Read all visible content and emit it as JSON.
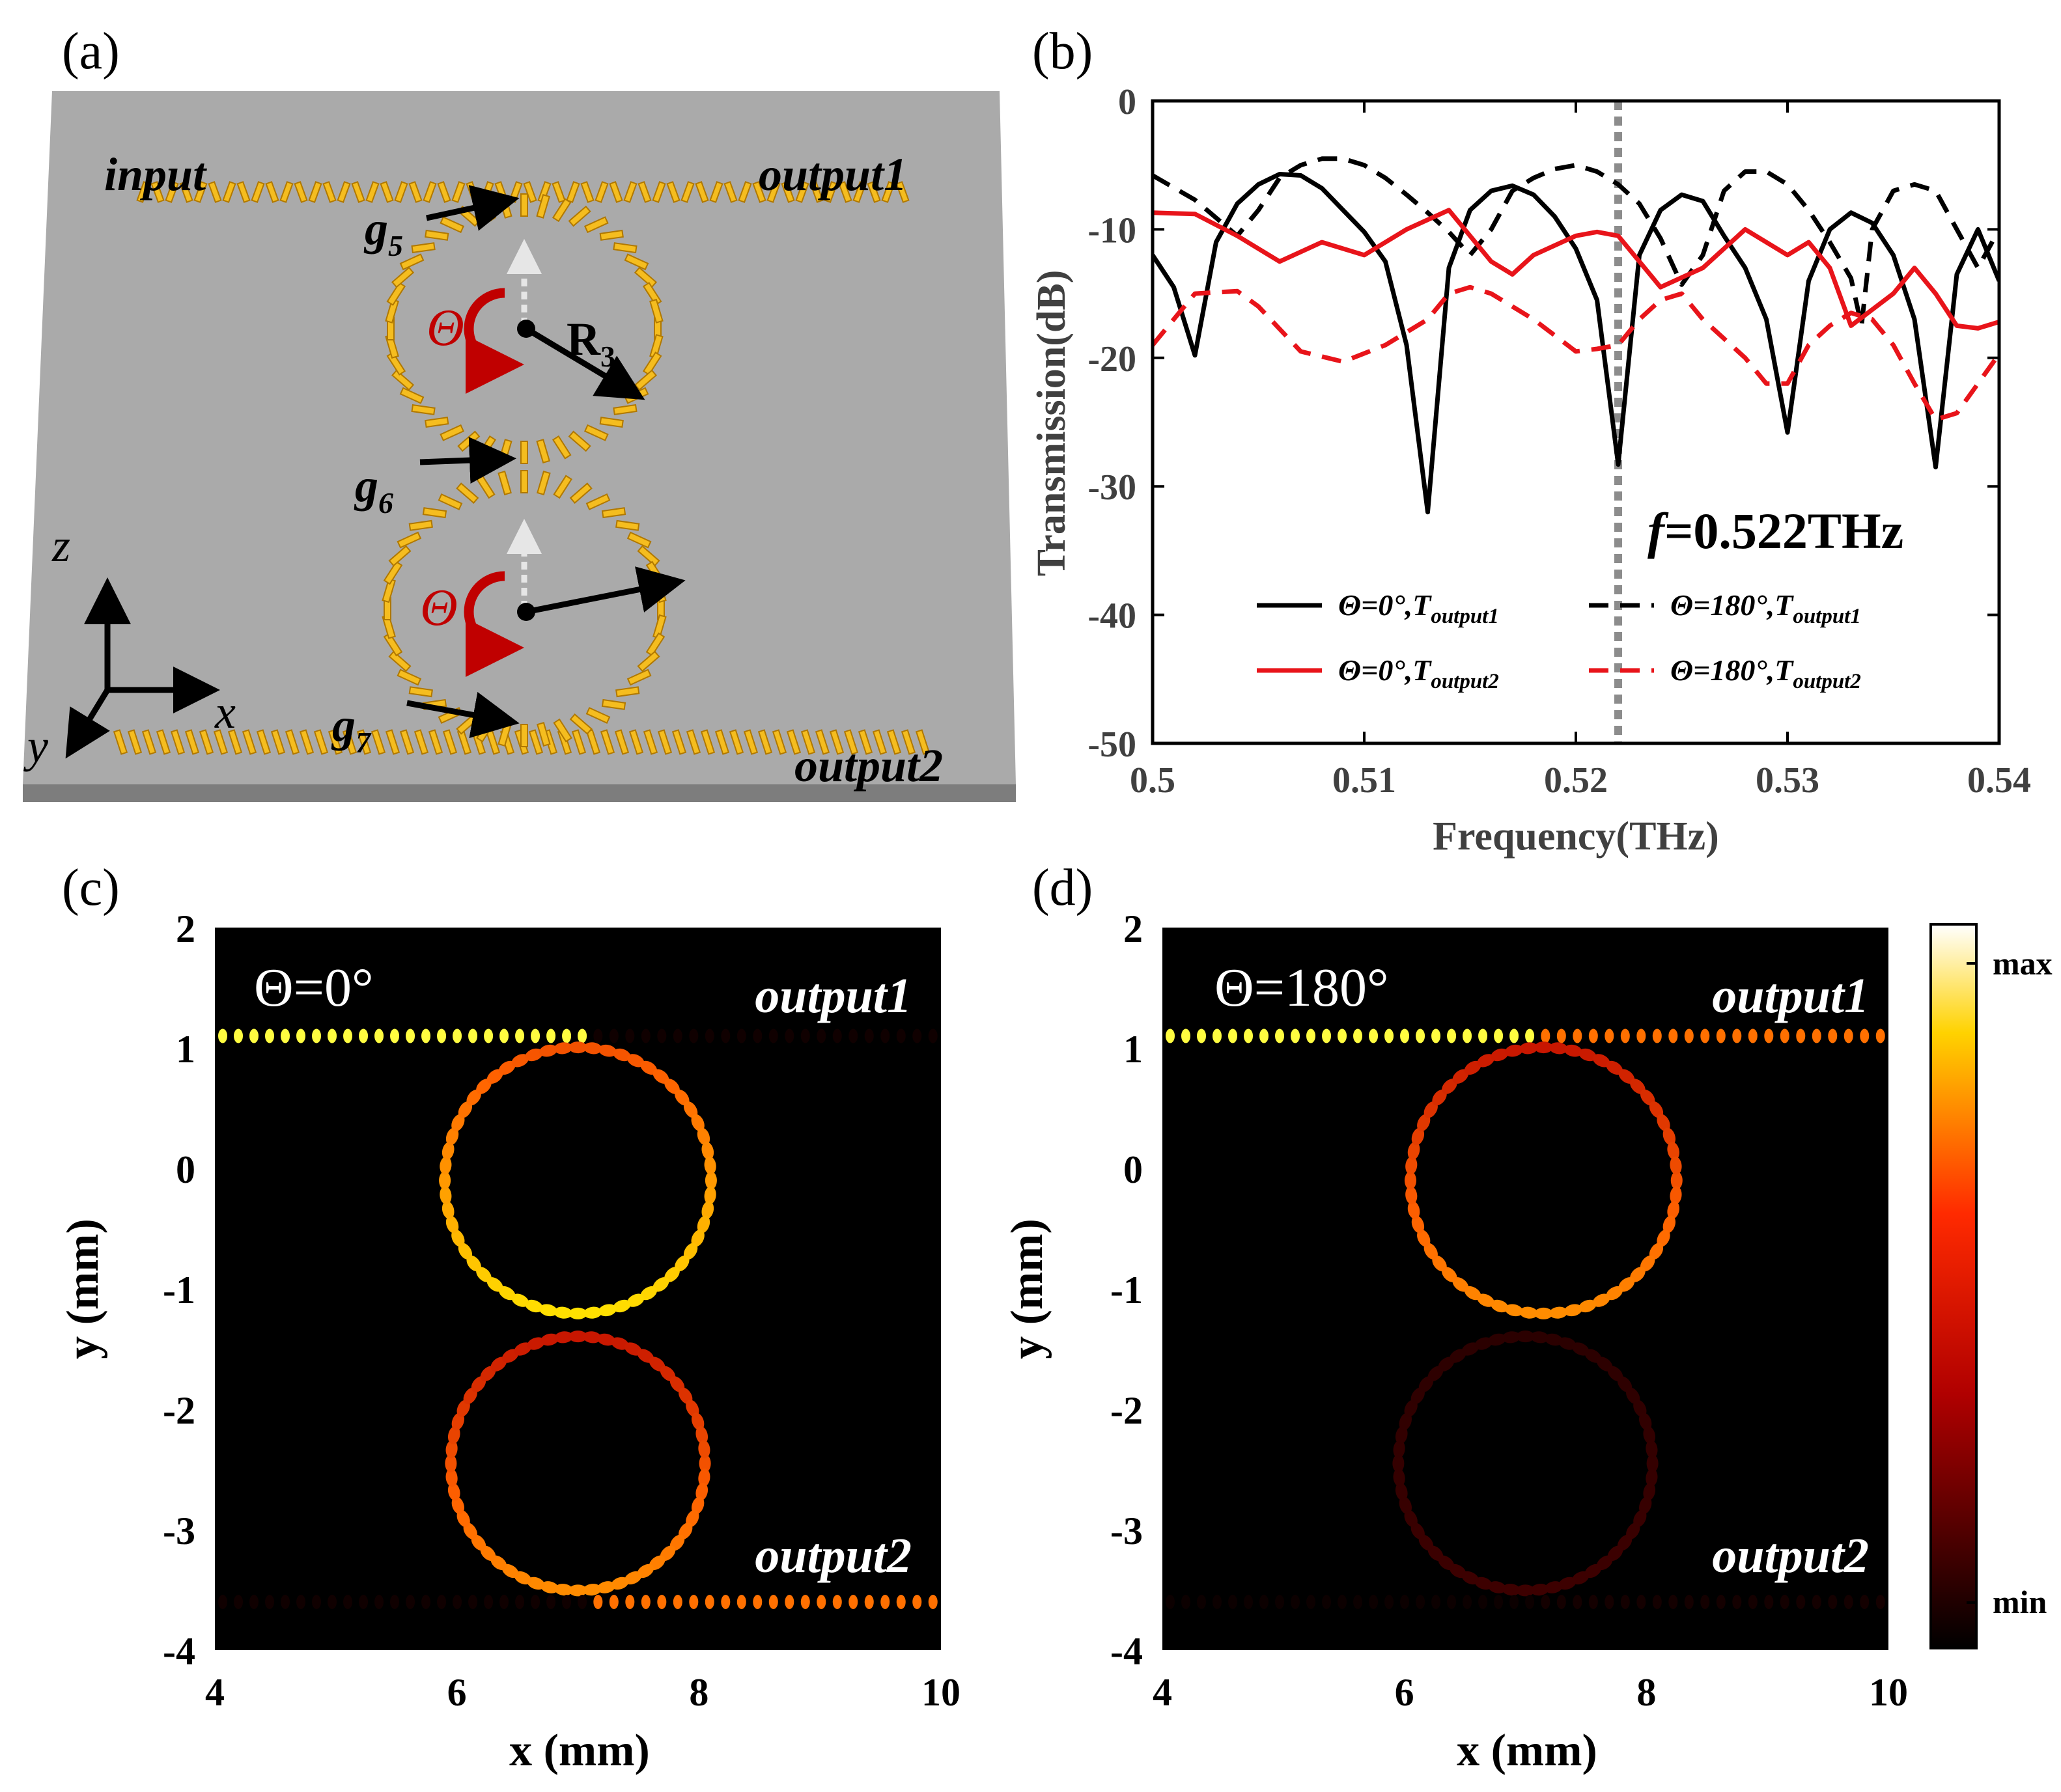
{
  "panels": {
    "a": {
      "label": "(a)",
      "input_label": "input",
      "output1_label": "output1",
      "output2_label": "output2",
      "g5": {
        "base": "g",
        "sub": "5"
      },
      "g6": {
        "base": "g",
        "sub": "6"
      },
      "g7": {
        "base": "g",
        "sub": "7"
      },
      "radius": {
        "base": "R",
        "sub": "3"
      },
      "theta_symbol": "Θ",
      "axis_z": "z",
      "axis_x": "x",
      "axis_y": "y"
    },
    "b": {
      "label": "(b)"
    },
    "c": {
      "label": "(c)",
      "theta_text": "Θ=0°",
      "output1_label": "output1",
      "output2_label": "output2"
    },
    "d": {
      "label": "(d)",
      "theta_text": "Θ=180°",
      "output1_label": "output1",
      "output2_label": "output2"
    }
  },
  "colorbar": {
    "max_label": "max",
    "min_label": "min"
  },
  "colors": {
    "black": "#000000",
    "red": "#e8141a",
    "marker": "#8c8c8c",
    "gold": "#f5bd1f",
    "slab": "#aaaaaa"
  },
  "chart_data": [
    {
      "type": "line",
      "panel": "(b)",
      "xlabel": "Frequency(THz)",
      "ylabel": "Transmission(dB)",
      "xlim": [
        0.5,
        0.54
      ],
      "ylim": [
        -50,
        0
      ],
      "xticks": [
        0.5,
        0.51,
        0.52,
        0.53,
        0.54
      ],
      "xtick_labels": [
        "0.5",
        "0.51",
        "0.52",
        "0.53",
        "0.54"
      ],
      "yticks": [
        0,
        -10,
        -20,
        -30,
        -40,
        -50
      ],
      "ytick_labels": [
        "0",
        "-10",
        "-20",
        "-30",
        "-40",
        "-50"
      ],
      "marker_line": {
        "x": 0.522,
        "label_f": "f",
        "label_value": "=0.522THz"
      },
      "legend_position": "bottom",
      "series": [
        {
          "key": "s0",
          "legend_main": "Θ=0°,T",
          "legend_sub": "output1",
          "color": "#000000",
          "dash": "solid",
          "points": [
            [
              0.5,
              -12
            ],
            [
              0.501,
              -14.5
            ],
            [
              0.502,
              -19.8
            ],
            [
              0.503,
              -11
            ],
            [
              0.504,
              -8
            ],
            [
              0.505,
              -6.5
            ],
            [
              0.506,
              -5.7
            ],
            [
              0.507,
              -5.8
            ],
            [
              0.508,
              -6.8
            ],
            [
              0.509,
              -8.5
            ],
            [
              0.51,
              -10.2
            ],
            [
              0.511,
              -12.5
            ],
            [
              0.512,
              -19
            ],
            [
              0.513,
              -32
            ],
            [
              0.514,
              -13
            ],
            [
              0.515,
              -8.5
            ],
            [
              0.516,
              -7
            ],
            [
              0.517,
              -6.6
            ],
            [
              0.518,
              -7.3
            ],
            [
              0.519,
              -9
            ],
            [
              0.52,
              -11.5
            ],
            [
              0.521,
              -15.5
            ],
            [
              0.522,
              -28.3
            ],
            [
              0.523,
              -12
            ],
            [
              0.524,
              -8.5
            ],
            [
              0.525,
              -7.3
            ],
            [
              0.526,
              -7.8
            ],
            [
              0.527,
              -10.5
            ],
            [
              0.528,
              -13
            ],
            [
              0.529,
              -17
            ],
            [
              0.53,
              -25.8
            ],
            [
              0.531,
              -14
            ],
            [
              0.532,
              -10
            ],
            [
              0.533,
              -8.7
            ],
            [
              0.534,
              -9.5
            ],
            [
              0.535,
              -12
            ],
            [
              0.536,
              -17
            ],
            [
              0.537,
              -28.5
            ],
            [
              0.538,
              -13.5
            ],
            [
              0.539,
              -10
            ],
            [
              0.54,
              -14
            ]
          ]
        },
        {
          "key": "s1",
          "legend_main": "Θ=180°,T",
          "legend_sub": "output1",
          "color": "#000000",
          "dash": "dashed",
          "points": [
            [
              0.5,
              -5.8
            ],
            [
              0.502,
              -7.7
            ],
            [
              0.504,
              -10.5
            ],
            [
              0.505,
              -8.5
            ],
            [
              0.506,
              -6
            ],
            [
              0.507,
              -5
            ],
            [
              0.508,
              -4.5
            ],
            [
              0.509,
              -4.5
            ],
            [
              0.51,
              -5
            ],
            [
              0.511,
              -6
            ],
            [
              0.512,
              -7.3
            ],
            [
              0.513,
              -8.7
            ],
            [
              0.514,
              -10.2
            ],
            [
              0.515,
              -12
            ],
            [
              0.516,
              -10
            ],
            [
              0.517,
              -7
            ],
            [
              0.518,
              -6
            ],
            [
              0.519,
              -5.3
            ],
            [
              0.52,
              -5
            ],
            [
              0.521,
              -5.5
            ],
            [
              0.522,
              -6.5
            ],
            [
              0.523,
              -8
            ],
            [
              0.524,
              -10.7
            ],
            [
              0.525,
              -14.3
            ],
            [
              0.526,
              -12
            ],
            [
              0.527,
              -7
            ],
            [
              0.528,
              -5.5
            ],
            [
              0.529,
              -5.5
            ],
            [
              0.53,
              -6.5
            ],
            [
              0.531,
              -8.5
            ],
            [
              0.532,
              -11
            ],
            [
              0.533,
              -13.8
            ],
            [
              0.5335,
              -17.5
            ],
            [
              0.534,
              -10
            ],
            [
              0.535,
              -7
            ],
            [
              0.536,
              -6.5
            ],
            [
              0.537,
              -7
            ],
            [
              0.538,
              -10
            ],
            [
              0.539,
              -13
            ],
            [
              0.54,
              -10
            ]
          ]
        },
        {
          "key": "s2",
          "legend_main": "Θ=0°,T",
          "legend_sub": "output2",
          "color": "#e8141a",
          "dash": "solid",
          "points": [
            [
              0.5,
              -8.7
            ],
            [
              0.502,
              -8.8
            ],
            [
              0.504,
              -10.5
            ],
            [
              0.506,
              -12.5
            ],
            [
              0.508,
              -11
            ],
            [
              0.51,
              -12
            ],
            [
              0.512,
              -10
            ],
            [
              0.514,
              -8.5
            ],
            [
              0.516,
              -12.5
            ],
            [
              0.517,
              -13.5
            ],
            [
              0.518,
              -12
            ],
            [
              0.52,
              -10.5
            ],
            [
              0.521,
              -10.2
            ],
            [
              0.522,
              -10.5
            ],
            [
              0.524,
              -14.5
            ],
            [
              0.526,
              -13
            ],
            [
              0.528,
              -10
            ],
            [
              0.529,
              -11
            ],
            [
              0.53,
              -12
            ],
            [
              0.531,
              -11
            ],
            [
              0.532,
              -13
            ],
            [
              0.533,
              -17.5
            ],
            [
              0.535,
              -15
            ],
            [
              0.536,
              -13
            ],
            [
              0.537,
              -15
            ],
            [
              0.538,
              -17.5
            ],
            [
              0.539,
              -17.7
            ],
            [
              0.54,
              -17.2
            ]
          ]
        },
        {
          "key": "s3",
          "legend_main": "Θ=180°,T",
          "legend_sub": "output2",
          "color": "#e8141a",
          "dash": "dashed",
          "points": [
            [
              0.5,
              -19
            ],
            [
              0.502,
              -15
            ],
            [
              0.504,
              -14.8
            ],
            [
              0.505,
              -16
            ],
            [
              0.507,
              -19.5
            ],
            [
              0.509,
              -20.3
            ],
            [
              0.511,
              -19
            ],
            [
              0.513,
              -17
            ],
            [
              0.514,
              -15
            ],
            [
              0.515,
              -14.5
            ],
            [
              0.516,
              -15
            ],
            [
              0.518,
              -17
            ],
            [
              0.52,
              -19.5
            ],
            [
              0.521,
              -19.3
            ],
            [
              0.522,
              -19
            ],
            [
              0.523,
              -17
            ],
            [
              0.524,
              -15.5
            ],
            [
              0.525,
              -15
            ],
            [
              0.526,
              -17
            ],
            [
              0.528,
              -20
            ],
            [
              0.529,
              -22
            ],
            [
              0.53,
              -22
            ],
            [
              0.531,
              -19
            ],
            [
              0.532,
              -17.5
            ],
            [
              0.533,
              -16.5
            ],
            [
              0.534,
              -17
            ],
            [
              0.535,
              -19
            ],
            [
              0.536,
              -22
            ],
            [
              0.537,
              -24.8
            ],
            [
              0.538,
              -24.3
            ],
            [
              0.539,
              -22
            ],
            [
              0.54,
              -19.7
            ]
          ]
        }
      ]
    },
    {
      "type": "heatmap",
      "panel": "(c)",
      "xlabel": "x (mm)",
      "ylabel": "y (mm)",
      "xlim": [
        4,
        10
      ],
      "ylim": [
        -4,
        2
      ],
      "xticks": [
        4,
        6,
        8,
        10
      ],
      "xtick_labels": [
        "4",
        "6",
        "8",
        "10"
      ],
      "yticks": [
        2,
        1,
        0,
        -1,
        -2,
        -3,
        -4
      ],
      "ytick_labels": [
        "2",
        "1",
        "0",
        "-1",
        "-2",
        "-3",
        "-4"
      ],
      "colormap": "hot",
      "features": [
        {
          "kind": "waveguide",
          "x0": 4.0,
          "x1": 7.1,
          "y": 1.1,
          "intensity": 0.9
        },
        {
          "kind": "waveguide",
          "x0": 7.1,
          "x1": 10.0,
          "y": 1.1,
          "intensity": 0.04
        },
        {
          "kind": "ring",
          "cx": 7.0,
          "cy": -0.1,
          "r": 1.1,
          "intensity": 0.85
        },
        {
          "kind": "ring",
          "cx": 7.0,
          "cy": -2.45,
          "r": 1.05,
          "intensity": 0.7
        },
        {
          "kind": "waveguide",
          "x0": 7.1,
          "x1": 10.0,
          "y": -3.6,
          "intensity": 0.65
        },
        {
          "kind": "waveguide",
          "x0": 4.0,
          "x1": 7.1,
          "y": -3.6,
          "intensity": 0.04
        }
      ]
    },
    {
      "type": "heatmap",
      "panel": "(d)",
      "xlabel": "x (mm)",
      "ylabel": "y (mm)",
      "xlim": [
        4,
        10
      ],
      "ylim": [
        -4,
        2
      ],
      "xticks": [
        4,
        6,
        8,
        10
      ],
      "xtick_labels": [
        "4",
        "6",
        "8",
        "10"
      ],
      "yticks": [
        2,
        1,
        0,
        -1,
        -2,
        -3,
        -4
      ],
      "ytick_labels": [
        "2",
        "1",
        "0",
        "-1",
        "-2",
        "-3",
        "-4"
      ],
      "colormap": "hot",
      "features": [
        {
          "kind": "waveguide",
          "x0": 4.0,
          "x1": 7.1,
          "y": 1.1,
          "intensity": 0.9
        },
        {
          "kind": "waveguide",
          "x0": 7.1,
          "x1": 10.0,
          "y": 1.1,
          "intensity": 0.65
        },
        {
          "kind": "ring",
          "cx": 7.15,
          "cy": -0.1,
          "r": 1.1,
          "intensity": 0.7
        },
        {
          "kind": "ring",
          "cx": 7.0,
          "cy": -2.45,
          "r": 1.05,
          "intensity": 0.15
        },
        {
          "kind": "waveguide",
          "x0": 7.1,
          "x1": 10.0,
          "y": -3.6,
          "intensity": 0.05
        },
        {
          "kind": "waveguide",
          "x0": 4.0,
          "x1": 7.1,
          "y": -3.6,
          "intensity": 0.03
        }
      ]
    }
  ]
}
